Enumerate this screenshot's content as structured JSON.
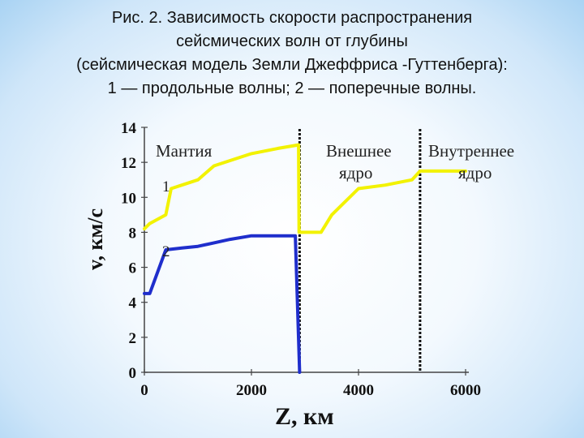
{
  "caption": {
    "line1": "Рис. 2. Зависимость скорости распространения",
    "line2": "сейсмических волн от глубины",
    "line3": "(сейсмическая модель Земли Джеффриса -Гуттенберга):",
    "line4": "1 — продольные волны; 2 — поперечные волны."
  },
  "chart_data": {
    "type": "line",
    "title": "Рис. 2. Зависимость скорости распространения сейсмических волн от глубины (сейсмическая модель Земли Джеффриса -Гуттенберга): 1 — продольные волны; 2 — поперечные волны.",
    "xlabel": "Z, км",
    "ylabel": "v, км/с",
    "xlim": [
      0,
      6000
    ],
    "ylim": [
      0,
      14
    ],
    "x_ticks": [
      0,
      2000,
      4000,
      6000
    ],
    "y_ticks": [
      0,
      2,
      4,
      6,
      8,
      10,
      12,
      14
    ],
    "grid": false,
    "series": [
      {
        "name": "1",
        "color": "#f2f200",
        "x": [
          0,
          100,
          400,
          500,
          700,
          1000,
          1300,
          1600,
          2000,
          2500,
          2880,
          2890,
          2900,
          3100,
          3300,
          3500,
          4000,
          4500,
          5000,
          5150,
          5250,
          6000
        ],
        "y": [
          8.2,
          8.5,
          9.0,
          10.5,
          10.7,
          11.0,
          11.8,
          12.1,
          12.5,
          12.8,
          13.0,
          8.0,
          8.0,
          8.0,
          8.0,
          9.0,
          10.5,
          10.7,
          11.0,
          11.5,
          11.5,
          11.5
        ]
      },
      {
        "name": "2",
        "color": "#1f2ecc",
        "x": [
          0,
          100,
          400,
          700,
          1000,
          1300,
          1600,
          2000,
          2500,
          2800,
          2820,
          2900
        ],
        "y": [
          4.5,
          4.5,
          7.0,
          7.1,
          7.2,
          7.4,
          7.6,
          7.8,
          7.8,
          7.8,
          7.8,
          0
        ]
      }
    ],
    "boundaries": [
      {
        "x": 2900
      },
      {
        "x": 5150
      }
    ],
    "annotations": {
      "mantle": "Мантия",
      "outer_core_1": "Внешнее",
      "outer_core_2": "ядро",
      "inner_core_1": "Внутреннее",
      "inner_core_2": "ядро",
      "label_1": "1",
      "label_2": "2"
    }
  }
}
